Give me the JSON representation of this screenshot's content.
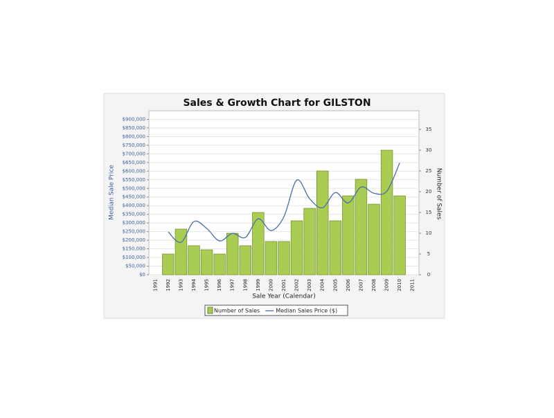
{
  "chart_data": {
    "type": "bar-line",
    "title": "Sales & Growth Chart for GILSTON",
    "x_label": "Sale Year (Calendar)",
    "y_label": "Median Sale Price",
    "y2_label": "Number of Sales",
    "categories": [
      "1991",
      "1992",
      "1993",
      "1994",
      "1995",
      "1996",
      "1997",
      "1998",
      "1999",
      "2000",
      "2001",
      "2002",
      "2003",
      "2004",
      "2005",
      "2006",
      "2007",
      "2008",
      "2009",
      "2010",
      "2011"
    ],
    "series": [
      {
        "name": "Number of Sales",
        "type": "bar",
        "axis": "y2",
        "color": "#a9cc52",
        "values": [
          null,
          5,
          11,
          7,
          6,
          5,
          10,
          7,
          15,
          8,
          8,
          13,
          16,
          25,
          13,
          19,
          23,
          17,
          30,
          19,
          null
        ]
      },
      {
        "name": "Median Sales Price ($)",
        "type": "line",
        "axis": "y",
        "color": "#4a6fa5",
        "values": [
          null,
          248000,
          188000,
          308000,
          268000,
          196000,
          240000,
          216000,
          324000,
          256000,
          336000,
          548000,
          440000,
          388000,
          476000,
          416000,
          508000,
          472000,
          484000,
          648000,
          null
        ]
      }
    ],
    "ylim": [
      0,
      950000
    ],
    "yticks": [
      {
        "value": 0,
        "label": "$0"
      },
      {
        "value": 50000,
        "label": "$50,000"
      },
      {
        "value": 100000,
        "label": "$100,000"
      },
      {
        "value": 150000,
        "label": "$150,000"
      },
      {
        "value": 200000,
        "label": "$200,000"
      },
      {
        "value": 250000,
        "label": "$250,000"
      },
      {
        "value": 300000,
        "label": "$300,000"
      },
      {
        "value": 350000,
        "label": "$350,000"
      },
      {
        "value": 400000,
        "label": "$400,000"
      },
      {
        "value": 450000,
        "label": "$450,000"
      },
      {
        "value": 500000,
        "label": "$500,000"
      },
      {
        "value": 550000,
        "label": "$550,000"
      },
      {
        "value": 600000,
        "label": "$600,000"
      },
      {
        "value": 650000,
        "label": "$650,000"
      },
      {
        "value": 700000,
        "label": "$700,000"
      },
      {
        "value": 750000,
        "label": "$750,000"
      },
      {
        "value": 800000,
        "label": "$800,000"
      },
      {
        "value": 850000,
        "label": "$850,000"
      },
      {
        "value": 900000,
        "label": "$900,000"
      }
    ],
    "y2lim": [
      0,
      39.5
    ],
    "y2ticks": [
      0,
      5,
      10,
      15,
      20,
      25,
      30,
      35
    ],
    "grid": true
  }
}
